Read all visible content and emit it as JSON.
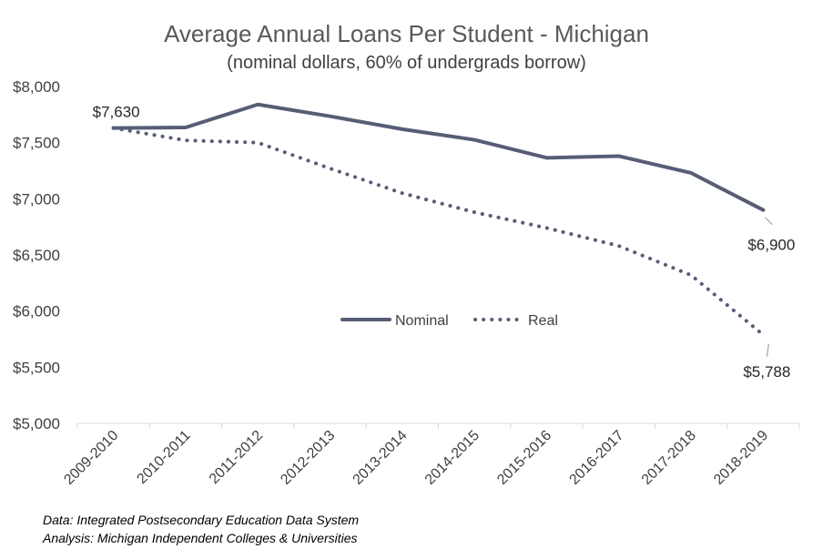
{
  "chart_data": {
    "type": "line",
    "title": "Average Annual Loans Per Student - Michigan",
    "subtitle": "(nominal dollars, 60% of undergrads borrow)",
    "categories": [
      "2009-2010",
      "2010-2011",
      "2011-2012",
      "2012-2013",
      "2013-2014",
      "2014-2015",
      "2015-2016",
      "2016-2017",
      "2017-2018",
      "2018-2019"
    ],
    "series": [
      {
        "name": "Nominal",
        "values": [
          7630,
          7635,
          7840,
          7735,
          7620,
          7525,
          7365,
          7380,
          7230,
          6900
        ],
        "color": "#565d75",
        "style": "solid"
      },
      {
        "name": "Real",
        "values": [
          7630,
          7520,
          7500,
          7270,
          7050,
          6880,
          6740,
          6580,
          6320,
          5788
        ],
        "color": "#565d75",
        "style": "dotted"
      }
    ],
    "y_ticks": [
      "$8,000",
      "$7,500",
      "$7,000",
      "$6,500",
      "$6,000",
      "$5,500",
      "$5,000"
    ],
    "ylim": [
      5000,
      8000
    ],
    "data_labels": [
      {
        "series": 0,
        "index": 0,
        "text": "$7,630"
      },
      {
        "series": 0,
        "index": 9,
        "text": "$6,900"
      },
      {
        "series": 1,
        "index": 9,
        "text": "$5,788"
      }
    ],
    "grid": false,
    "legend_position": "center"
  },
  "footer": {
    "data_source": "Data: Integrated Postsecondary Education Data System",
    "analysis": "Analysis: Michigan Independent Colleges & Universities"
  }
}
